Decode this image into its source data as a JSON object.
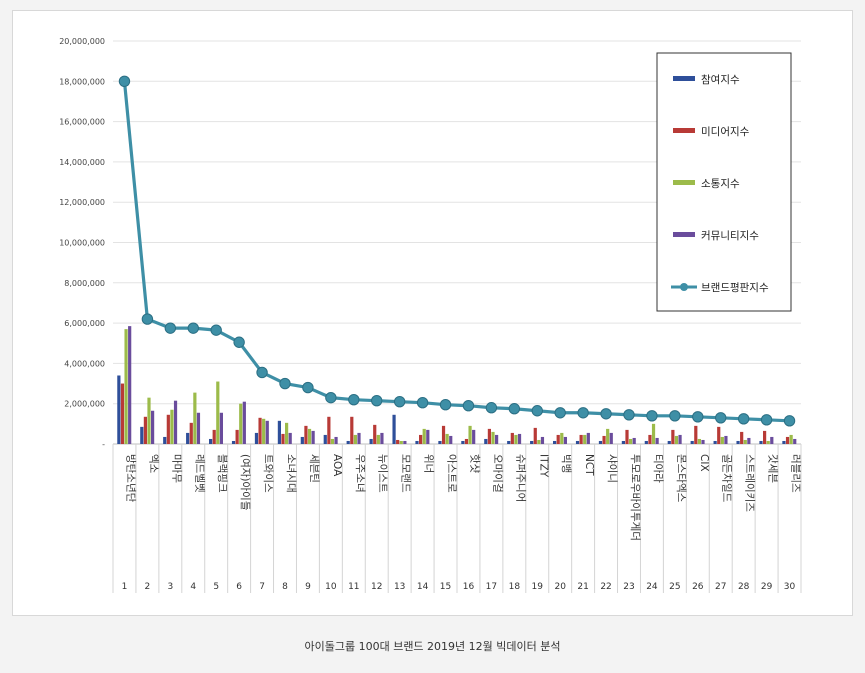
{
  "caption": "아이돌그룹 100대 브랜드 2019년 12월 빅데이터 분석",
  "chart_data": {
    "type": "bar",
    "ylim": [
      0,
      20000000
    ],
    "yticks": [
      "-",
      "2,000,000",
      "4,000,000",
      "6,000,000",
      "8,000,000",
      "10,000,000",
      "12,000,000",
      "14,000,000",
      "16,000,000",
      "18,000,000",
      "20,000,000"
    ],
    "grid": true,
    "legend_position": "top-right",
    "categories": [
      "방탄소년단",
      "엑소",
      "마마무",
      "레드벨벳",
      "블랙핑크",
      "(여자)아이들",
      "트와이스",
      "소녀시대",
      "세븐틴",
      "AOA",
      "우주소녀",
      "뉴이스트",
      "모모랜드",
      "위너",
      "아스트로",
      "핫샷",
      "오마이걸",
      "슈퍼주니어",
      "ITZY",
      "빅뱅",
      "NCT",
      "샤이니",
      "투모로우바이투게더",
      "티아라",
      "몬스타엑스",
      "CIX",
      "골든차일드",
      "스트레이키즈",
      "갓세븐",
      "러블리즈"
    ],
    "ranks": [
      "1",
      "2",
      "3",
      "4",
      "5",
      "6",
      "7",
      "8",
      "9",
      "10",
      "11",
      "12",
      "13",
      "14",
      "15",
      "16",
      "17",
      "18",
      "19",
      "20",
      "21",
      "22",
      "23",
      "24",
      "25",
      "26",
      "27",
      "28",
      "29",
      "30"
    ],
    "series": [
      {
        "name": "참여지수",
        "color": "#2e4f9a",
        "kind": "bar",
        "values": [
          3400000,
          850000,
          350000,
          550000,
          250000,
          150000,
          550000,
          1150000,
          350000,
          450000,
          150000,
          250000,
          1450000,
          150000,
          150000,
          150000,
          250000,
          150000,
          150000,
          150000,
          150000,
          150000,
          150000,
          150000,
          150000,
          150000,
          150000,
          150000,
          150000,
          150000
        ]
      },
      {
        "name": "미디어지수",
        "color": "#b83a36",
        "kind": "bar",
        "values": [
          3000000,
          1350000,
          1450000,
          1050000,
          700000,
          700000,
          1300000,
          500000,
          900000,
          1350000,
          1350000,
          950000,
          200000,
          450000,
          900000,
          250000,
          750000,
          550000,
          800000,
          450000,
          450000,
          400000,
          700000,
          450000,
          700000,
          900000,
          850000,
          600000,
          650000,
          350000
        ]
      },
      {
        "name": "소통지수",
        "color": "#9cbb4a",
        "kind": "bar",
        "values": [
          5700000,
          2300000,
          1700000,
          2550000,
          3100000,
          2000000,
          1250000,
          1050000,
          750000,
          250000,
          450000,
          450000,
          150000,
          750000,
          500000,
          900000,
          600000,
          450000,
          200000,
          550000,
          450000,
          750000,
          250000,
          1000000,
          400000,
          250000,
          350000,
          200000,
          150000,
          450000
        ]
      },
      {
        "name": "커뮤니티지수",
        "color": "#6a4c9c",
        "kind": "bar",
        "values": [
          5850000,
          1650000,
          2150000,
          1550000,
          1550000,
          2100000,
          1150000,
          550000,
          650000,
          350000,
          550000,
          550000,
          150000,
          700000,
          400000,
          700000,
          450000,
          500000,
          350000,
          350000,
          550000,
          550000,
          300000,
          300000,
          450000,
          200000,
          400000,
          300000,
          350000,
          250000
        ]
      },
      {
        "name": "브랜드평판지수",
        "color": "#3e8fa6",
        "kind": "line",
        "values": [
          18000000,
          6200000,
          5750000,
          5750000,
          5650000,
          5050000,
          3550000,
          3000000,
          2800000,
          2300000,
          2200000,
          2150000,
          2100000,
          2050000,
          1950000,
          1900000,
          1800000,
          1750000,
          1650000,
          1550000,
          1550000,
          1500000,
          1450000,
          1400000,
          1400000,
          1350000,
          1300000,
          1250000,
          1200000,
          1150000
        ]
      }
    ]
  }
}
